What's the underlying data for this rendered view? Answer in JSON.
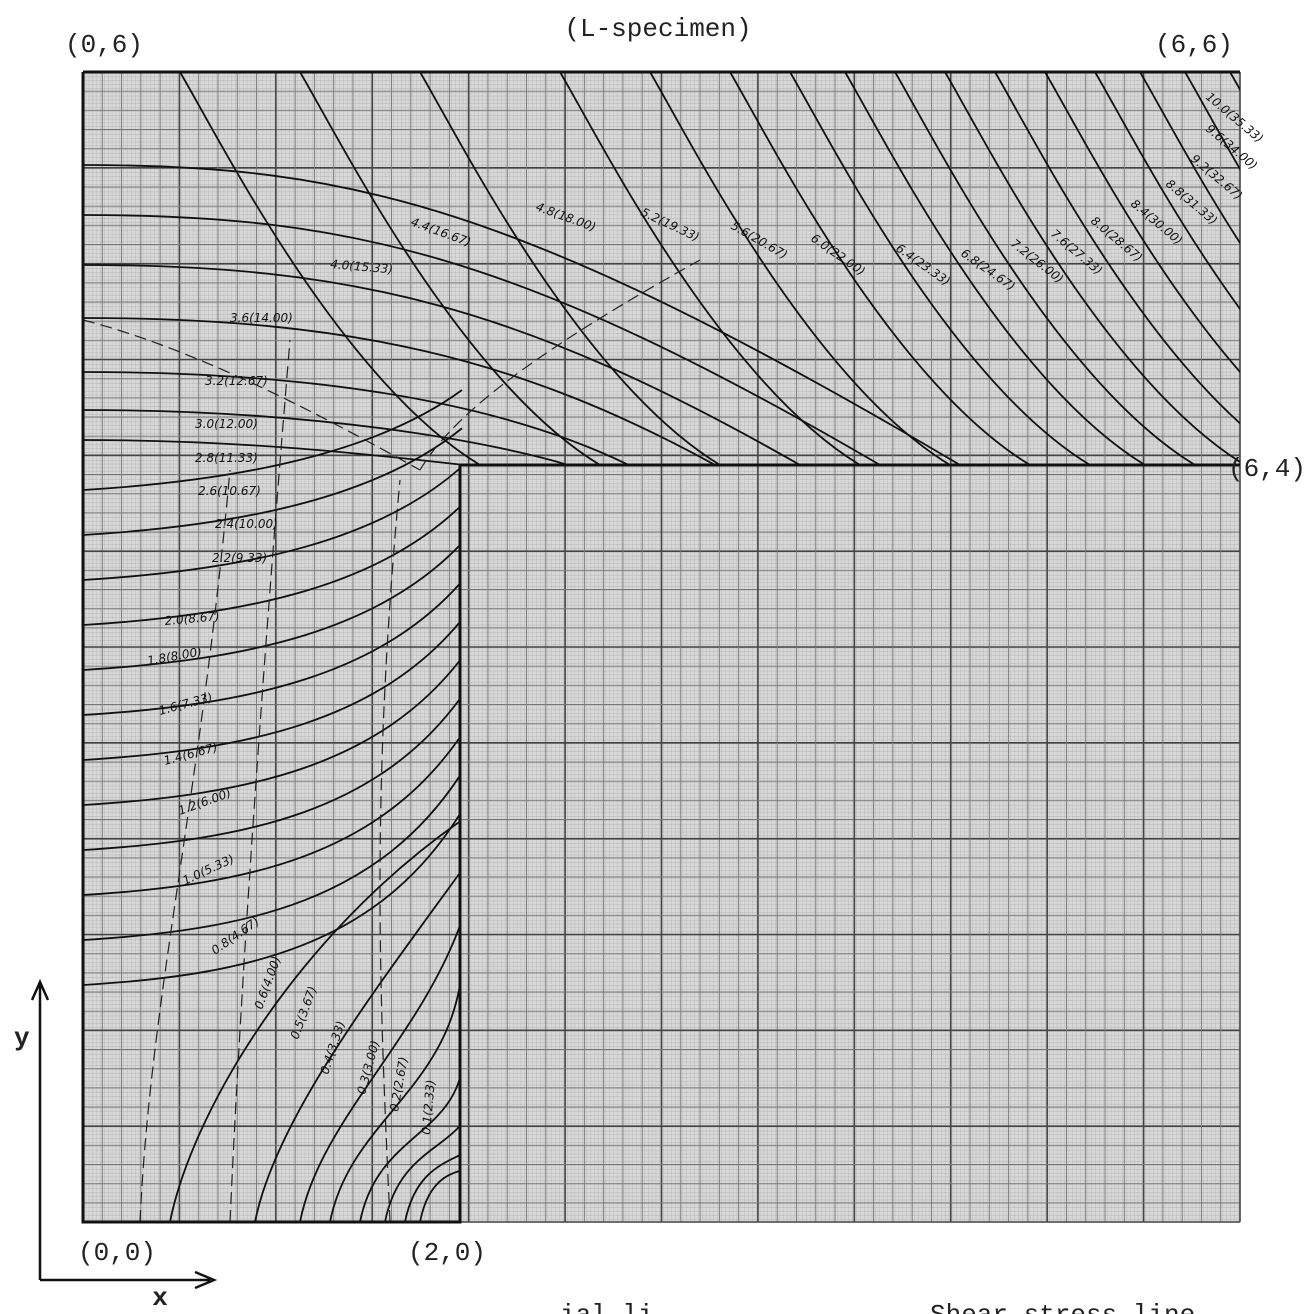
{
  "title": "(L-specimen)",
  "corner_labels": [
    "(0,6)",
    "(6,6)",
    "(6,4)",
    "(0,0)",
    "(2,0)"
  ],
  "axis_labels": {
    "x": "x",
    "y": "y"
  },
  "contour_labels": [
    "4.4(16.67)",
    "4.8(18.00)",
    "5.2(19.33)",
    "5.6(20.67)",
    "6.0(22.00)",
    "6.4(23.33)",
    "6.8(24.67)",
    "7.2(26.00)",
    "7.6(27.33)",
    "8.0(28.67)",
    "8.4(30.00)",
    "8.8(31.33)",
    "9.2(32.67)",
    "9.6(34.00)",
    "10.0(35.33)",
    "4.0(15.33)",
    "3.6(14.00)",
    "3.2(12.67)",
    "3.0(12.00)",
    "2.8(11.33)",
    "2.6(10.67)",
    "2.4(10.00)",
    "2.2(9.33)",
    "2.0(8.67)",
    "1.8(8.00)",
    "1.6(7.33)",
    "1.4(6.67)",
    "1.2(6.00)",
    "1.0(5.33)",
    "0.8(4.67)",
    "0.6(4.00)",
    "0.5(3.67)",
    "0.4(3.33)",
    "0.3(3.00)",
    "0.2(2.67)",
    "0.1(2.33)"
  ],
  "footer": [
    "ial li",
    "Shear stress line"
  ]
}
